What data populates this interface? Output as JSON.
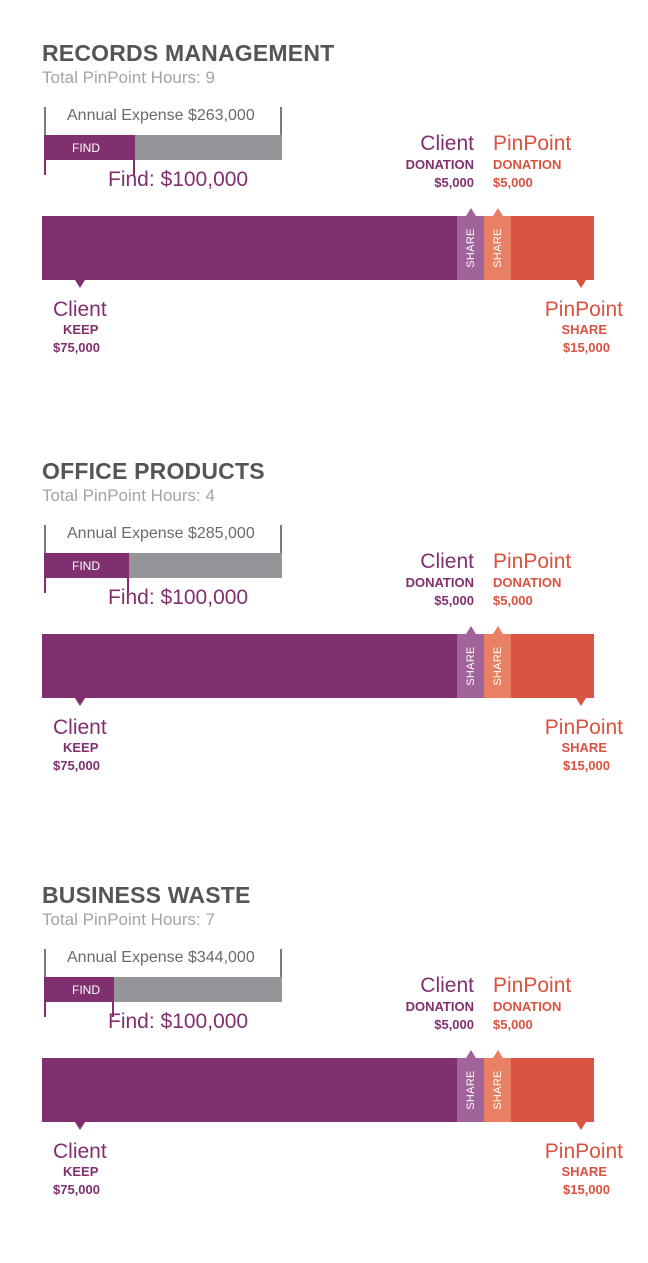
{
  "chart_data": [
    {
      "type": "bar",
      "title": "RECORDS MANAGEMENT",
      "subtitle": "Total PinPoint Hours: 9",
      "annual_expense": 263000,
      "annual_expense_label": "Annual Expense $263,000",
      "find": 100000,
      "find_bar_label": "FIND",
      "find_label": "Find: $100,000",
      "client_donation": {
        "name": "Client",
        "label": "DONATION",
        "amount": "$5,000",
        "value": 5000
      },
      "pinpoint_donation": {
        "name": "PinPoint",
        "label": "DONATION",
        "amount": "$5,000",
        "value": 5000
      },
      "client_keep": {
        "name": "Client",
        "label": "KEEP",
        "amount": "$75,000",
        "value": 75000
      },
      "pinpoint_share": {
        "name": "PinPoint",
        "label": "SHARE",
        "amount": "$15,000",
        "value": 15000
      },
      "share_label": "SHARE"
    },
    {
      "type": "bar",
      "title": "OFFICE PRODUCTS",
      "subtitle": "Total PinPoint Hours: 4",
      "annual_expense": 285000,
      "annual_expense_label": "Annual Expense $285,000",
      "find": 100000,
      "find_bar_label": "FIND",
      "find_label": "Find: $100,000",
      "client_donation": {
        "name": "Client",
        "label": "DONATION",
        "amount": "$5,000",
        "value": 5000
      },
      "pinpoint_donation": {
        "name": "PinPoint",
        "label": "DONATION",
        "amount": "$5,000",
        "value": 5000
      },
      "client_keep": {
        "name": "Client",
        "label": "KEEP",
        "amount": "$75,000",
        "value": 75000
      },
      "pinpoint_share": {
        "name": "PinPoint",
        "label": "SHARE",
        "amount": "$15,000",
        "value": 15000
      },
      "share_label": "SHARE"
    },
    {
      "type": "bar",
      "title": "BUSINESS WASTE",
      "subtitle": "Total PinPoint Hours: 7",
      "annual_expense": 344000,
      "annual_expense_label": "Annual Expense $344,000",
      "find": 100000,
      "find_bar_label": "FIND",
      "find_label": "Find: $100,000",
      "client_donation": {
        "name": "Client",
        "label": "DONATION",
        "amount": "$5,000",
        "value": 5000
      },
      "pinpoint_donation": {
        "name": "PinPoint",
        "label": "DONATION",
        "amount": "$5,000",
        "value": 5000
      },
      "client_keep": {
        "name": "Client",
        "label": "KEEP",
        "amount": "$75,000",
        "value": 75000
      },
      "pinpoint_share": {
        "name": "PinPoint",
        "label": "SHARE",
        "amount": "$15,000",
        "value": 15000
      },
      "share_label": "SHARE"
    }
  ],
  "colors": {
    "client_purple": "#81306f",
    "client_share_purple": "#a0649a",
    "pinpoint_orange": "#d95340",
    "pinpoint_share_orange": "#e98063",
    "expense_gray": "#939598",
    "title_gray": "#555559",
    "subtitle_gray": "#a4a4a7"
  }
}
